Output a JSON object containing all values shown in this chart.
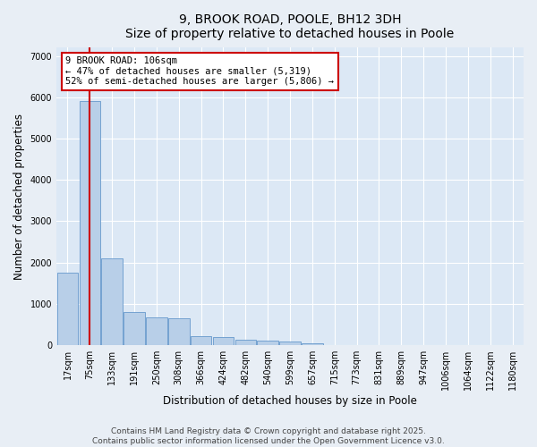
{
  "title_line1": "9, BROOK ROAD, POOLE, BH12 3DH",
  "title_line2": "Size of property relative to detached houses in Poole",
  "xlabel": "Distribution of detached houses by size in Poole",
  "ylabel": "Number of detached properties",
  "categories": [
    "17sqm",
    "75sqm",
    "133sqm",
    "191sqm",
    "250sqm",
    "308sqm",
    "366sqm",
    "424sqm",
    "482sqm",
    "540sqm",
    "599sqm",
    "657sqm",
    "715sqm",
    "773sqm",
    "831sqm",
    "889sqm",
    "947sqm",
    "1006sqm",
    "1064sqm",
    "1122sqm",
    "1180sqm"
  ],
  "values": [
    1750,
    5900,
    2100,
    800,
    680,
    650,
    220,
    200,
    130,
    110,
    80,
    50,
    10,
    5,
    3,
    2,
    1,
    1,
    0,
    0,
    0
  ],
  "bar_color": "#b8cfe8",
  "bar_edge_color": "#6699cc",
  "vline_x_index": 1,
  "vline_color": "#cc0000",
  "annotation_text": "9 BROOK ROAD: 106sqm\n← 47% of detached houses are smaller (5,319)\n52% of semi-detached houses are larger (5,806) →",
  "annotation_box_color": "#cc0000",
  "annotation_bg": "#ffffff",
  "ylim": [
    0,
    7200
  ],
  "yticks": [
    0,
    1000,
    2000,
    3000,
    4000,
    5000,
    6000,
    7000
  ],
  "bg_color": "#e8eef5",
  "plot_bg_color": "#dce8f5",
  "grid_color": "#ffffff",
  "footer_line1": "Contains HM Land Registry data © Crown copyright and database right 2025.",
  "footer_line2": "Contains public sector information licensed under the Open Government Licence v3.0.",
  "title_fontsize": 10,
  "tick_fontsize": 7,
  "label_fontsize": 8.5,
  "footer_fontsize": 6.5,
  "annotation_fontsize": 7.5
}
